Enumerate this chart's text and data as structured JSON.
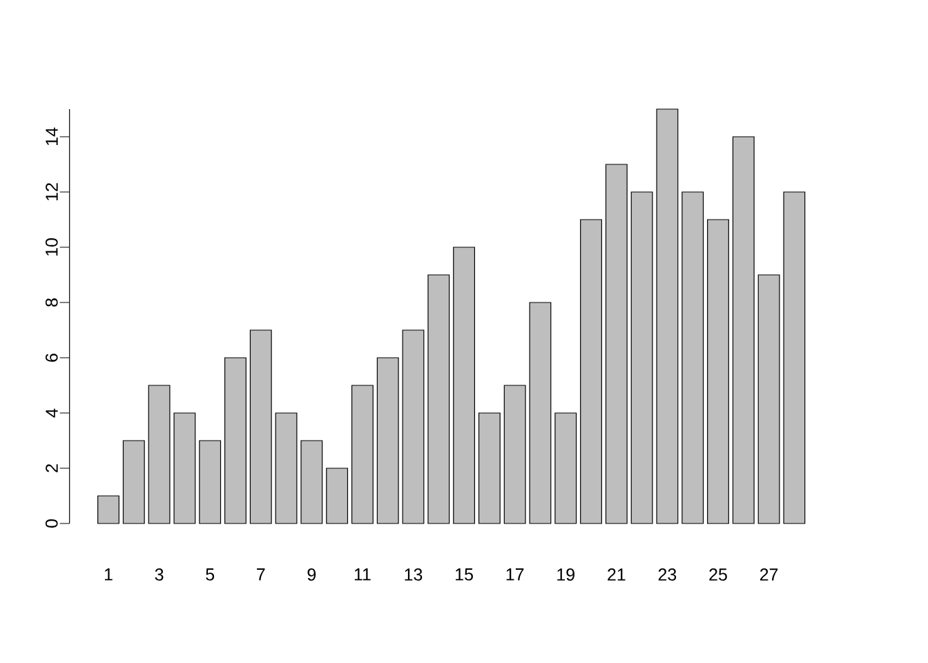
{
  "chart_data": {
    "type": "bar",
    "categories": [
      "1",
      null,
      "3",
      null,
      "5",
      null,
      "7",
      null,
      "9",
      null,
      "11",
      null,
      "13",
      null,
      "15",
      null,
      "17",
      null,
      "19",
      null,
      "21",
      null,
      "23",
      null,
      "25",
      null,
      "27",
      null
    ],
    "values": [
      1,
      3,
      5,
      4,
      3,
      6,
      7,
      4,
      3,
      2,
      5,
      6,
      7,
      9,
      10,
      4,
      5,
      8,
      4,
      11,
      13,
      12,
      15,
      12,
      11,
      14,
      9,
      12
    ],
    "color": "#bebebe",
    "ylim": [
      0,
      15
    ],
    "yticks": [
      0,
      2,
      4,
      6,
      8,
      10,
      12,
      14
    ]
  }
}
